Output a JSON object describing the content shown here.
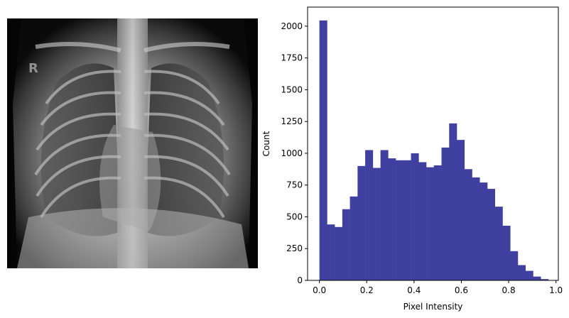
{
  "xray_image": {
    "marker_letter": "R"
  },
  "chart_data": {
    "type": "bar",
    "title": "",
    "xlabel": "Pixel Intensity",
    "ylabel": "Count",
    "xlim": [
      -0.05,
      1.01
    ],
    "ylim": [
      0,
      2150
    ],
    "xticks": [
      0.0,
      0.2,
      0.4,
      0.6,
      0.8,
      1.0
    ],
    "xtick_labels": [
      "0.0",
      "0.2",
      "0.4",
      "0.6",
      "0.8",
      "1.0"
    ],
    "yticks": [
      0,
      250,
      500,
      750,
      1000,
      1250,
      1500,
      1750,
      2000
    ],
    "ytick_labels": [
      "0",
      "250",
      "500",
      "750",
      "1000",
      "1250",
      "1500",
      "1750",
      "2000"
    ],
    "bin_edges": [
      0.0,
      0.0323,
      0.0645,
      0.0968,
      0.129,
      0.1613,
      0.1935,
      0.2258,
      0.2581,
      0.2903,
      0.3226,
      0.3548,
      0.3871,
      0.4194,
      0.4516,
      0.4839,
      0.5161,
      0.5484,
      0.5806,
      0.6129,
      0.6452,
      0.6774,
      0.7097,
      0.7419,
      0.7742,
      0.8065,
      0.8387,
      0.871,
      0.9032,
      0.9355,
      0.9677,
      1.0
    ],
    "values": [
      2045,
      440,
      420,
      560,
      660,
      900,
      1025,
      885,
      1025,
      960,
      945,
      945,
      1000,
      930,
      890,
      905,
      1045,
      1235,
      1105,
      875,
      810,
      770,
      720,
      580,
      430,
      230,
      120,
      75,
      30,
      10,
      0
    ],
    "bar_color": "#4040a0",
    "grid": false
  }
}
